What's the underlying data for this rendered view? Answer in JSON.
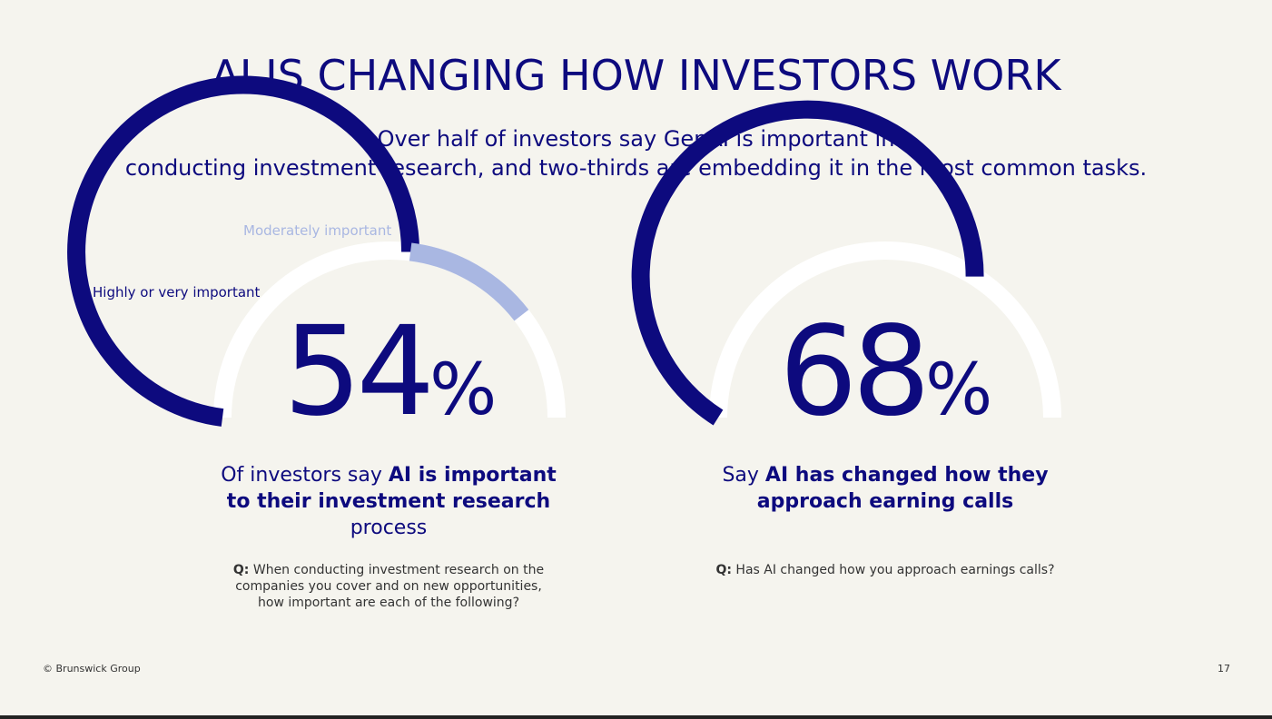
{
  "title": "AI IS CHANGING HOW INVESTORS WORK",
  "subtitle": {
    "line1": "Over half of investors say GenAI is important in",
    "line2": "conducting investment research, and two-thirds are embedding it in the most common tasks."
  },
  "colors": {
    "navy": "#0D0A7E",
    "light_blue": "#A9B7E2",
    "track": "#FFFFFF",
    "background": "#F5F4EE"
  },
  "chart_data": [
    {
      "type": "gauge",
      "value_label": "54",
      "unit": "%",
      "series": [
        {
          "name": "Highly or very important",
          "value": 54
        },
        {
          "name": "Moderately important",
          "value": 25
        }
      ],
      "max": 100
    },
    {
      "type": "gauge",
      "value_label": "68",
      "unit": "%",
      "series": [
        {
          "name": "",
          "value": 68
        }
      ],
      "max": 100
    }
  ],
  "left": {
    "label_highly": "Highly or very important",
    "label_moderately": "Moderately important",
    "caption_pre": "Of investors say ",
    "caption_bold": "AI is important to their investment research",
    "caption_post": "process",
    "q_prefix": "Q:",
    "question": " When conducting investment research on the companies you cover and on new opportunities, how important are each of the following?"
  },
  "right": {
    "caption_pre": "Say ",
    "caption_bold": "AI has changed how they approach earning calls",
    "q_prefix": "Q:",
    "question": " Has AI changed how you approach earnings calls?"
  },
  "footer": {
    "copyright": "© Brunswick Group",
    "page_number": "17"
  }
}
